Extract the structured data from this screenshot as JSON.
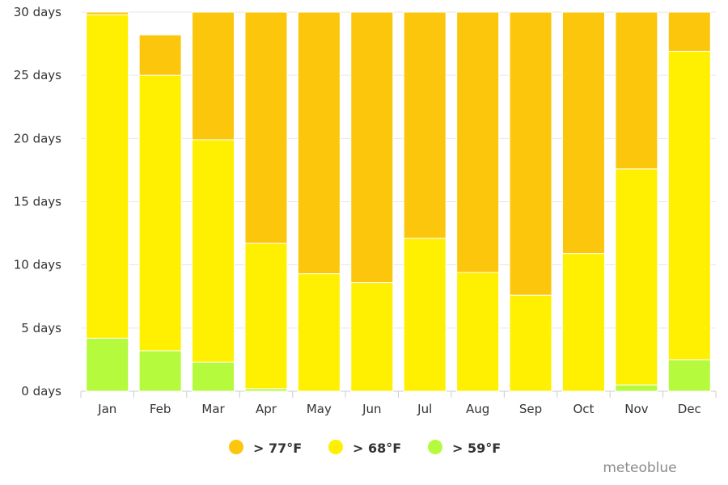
{
  "chart_data": {
    "type": "bar",
    "stacked": true,
    "categories": [
      "Jan",
      "Feb",
      "Mar",
      "Apr",
      "May",
      "Jun",
      "Jul",
      "Aug",
      "Sep",
      "Oct",
      "Nov",
      "Dec"
    ],
    "series": [
      {
        "name": "> 59°F",
        "color": "#b5fa3c",
        "values": [
          4.2,
          3.2,
          2.3,
          0.2,
          0,
          0,
          0,
          0,
          0,
          0,
          0.5,
          2.5
        ]
      },
      {
        "name": "> 68°F",
        "color": "#ffef00",
        "values": [
          25.6,
          21.8,
          17.6,
          11.5,
          9.3,
          8.6,
          12.1,
          9.4,
          7.6,
          10.9,
          17.1,
          24.4
        ]
      },
      {
        "name": "> 77°F",
        "color": "#fbc60c",
        "values": [
          0.2,
          3.2,
          10.1,
          18.3,
          20.7,
          21.4,
          17.9,
          20.6,
          22.4,
          19.1,
          12.4,
          3.1
        ]
      }
    ],
    "legend_order": [
      "> 77°F",
      "> 68°F",
      "> 59°F"
    ],
    "y_ticks": [
      "0 days",
      "5 days",
      "10 days",
      "15 days",
      "20 days",
      "25 days",
      "30 days"
    ],
    "y_tick_values": [
      0,
      5,
      10,
      15,
      20,
      25,
      30
    ],
    "ylim": [
      0,
      30
    ],
    "grid": true,
    "legend_position": "bottom-center",
    "credit": "meteoblue"
  }
}
